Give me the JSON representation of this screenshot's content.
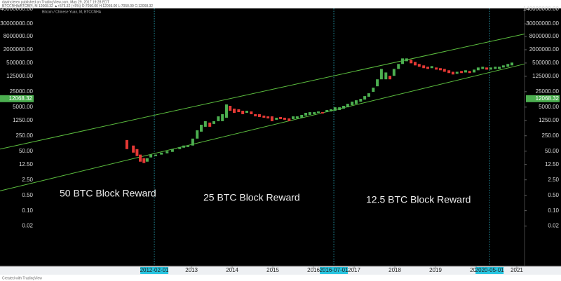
{
  "header": {
    "author_line": "davincierex published on TradingView.com, May 29, 2017 19:28 EDT",
    "quote_line": "BTCCNHA/BTCBPI, M 12068.32 ▲+575.32 (+5%) O:7050.00 H:12069.00 L:7050.00 C:12068.32"
  },
  "footer": "Created with TradingView",
  "chart_data": {
    "type": "candlestick",
    "title": "Bitcoin / Chinese Yuan, M, BTCCNHA",
    "log_scale": true,
    "up_color": "#4caf50",
    "down_color": "#e53935",
    "last_price": 12068.32,
    "last_price_color": "#4caf50",
    "xlim": [
      2008.29,
      2021.19
    ],
    "ylim": [
      0.0003,
      150000000
    ],
    "xticks": [
      2013,
      2014,
      2015,
      2016,
      2017,
      2018,
      2019,
      2020,
      2021
    ],
    "yticks": [
      {
        "value": 140000000,
        "label": "140000000.00"
      },
      {
        "value": 30000000,
        "label": "30000000.00"
      },
      {
        "value": 8000000,
        "label": "8000000.00"
      },
      {
        "value": 2000000,
        "label": "2000000.00"
      },
      {
        "value": 500000,
        "label": "500000.00"
      },
      {
        "value": 125000,
        "label": "125000.00"
      },
      {
        "value": 25000,
        "label": "25000.00"
      },
      {
        "value": 5000,
        "label": "5000.00"
      },
      {
        "value": 1250,
        "label": "1250.00"
      },
      {
        "value": 250,
        "label": "250.00"
      },
      {
        "value": 50,
        "label": "50.00"
      },
      {
        "value": 12.5,
        "label": "12.50"
      },
      {
        "value": 2.5,
        "label": "2.50"
      },
      {
        "value": 0.5,
        "label": "0.50"
      },
      {
        "value": 0.1,
        "label": "0.10"
      },
      {
        "value": 0.02,
        "label": "0.02"
      }
    ],
    "markers": [
      {
        "value": 2012.085,
        "label": "2012-02-01"
      },
      {
        "value": 2016.5,
        "label": "2016-07-01"
      },
      {
        "value": 2020.33,
        "label": "2020-05-01"
      }
    ],
    "channel_color": "#5bbd3e",
    "channel": [
      {
        "x": [
          2008.29,
          2021.19
        ],
        "values": [
          62,
          10400000
        ]
      },
      {
        "x": [
          2008.29,
          2021.19
        ],
        "values": [
          0.79,
          452000
        ]
      }
    ],
    "annotations": [
      "50 BTC Block Reward",
      "25 BTC Block Reward",
      "12.5 BTC Block Reward"
    ],
    "x": [
      2011.41,
      2011.57,
      2011.66,
      2011.74,
      2011.83,
      2011.91,
      2012.0,
      2012.12,
      2012.26,
      2012.4,
      2012.53,
      2012.71,
      2012.81,
      2012.91,
      2013.03,
      2013.14,
      2013.24,
      2013.34,
      2013.45,
      2013.55,
      2013.66,
      2013.76,
      2013.86,
      2013.95,
      2014.05,
      2014.16,
      2014.26,
      2014.36,
      2014.47,
      2014.57,
      2014.67,
      2014.78,
      2014.88,
      2014.98,
      2015.09,
      2015.19,
      2015.29,
      2015.4,
      2015.5,
      2015.6,
      2015.71,
      2015.81,
      2015.91,
      2016.02,
      2016.12,
      2016.22,
      2016.33,
      2016.43,
      2016.53,
      2016.64,
      2016.74,
      2016.84,
      2016.95,
      2017.05,
      2017.16,
      2017.26,
      2017.36,
      2017.47,
      2017.57,
      2017.67,
      2017.78,
      2017.88,
      2017.98,
      2018.09,
      2018.19,
      2018.29,
      2018.4,
      2018.5,
      2018.6,
      2018.71,
      2018.81,
      2018.91,
      2019.02,
      2019.12,
      2019.22,
      2019.33,
      2019.43,
      2019.53,
      2019.64,
      2019.74,
      2019.84,
      2019.95,
      2020.05,
      2020.16,
      2020.26,
      2020.36,
      2020.47,
      2020.57,
      2020.67,
      2020.78,
      2020.88
    ],
    "open": [
      160,
      90,
      62,
      35,
      24,
      16.7,
      26,
      30,
      35,
      40,
      46.5,
      62,
      72,
      77,
      90,
      186,
      385,
      640,
      990,
      860,
      1150,
      1150,
      1650,
      5700,
      4260,
      3970,
      3420,
      2750,
      3170,
      2380,
      2380,
      2060,
      1900,
      1900,
      1330,
      1780,
      1650,
      1530,
      1430,
      1530,
      1650,
      2060,
      2210,
      2380,
      2750,
      2950,
      2950,
      3170,
      3420,
      3680,
      4260,
      4900,
      6150,
      7070,
      8830,
      11000,
      14700,
      24500,
      43900,
      91000,
      91000,
      131000,
      131000,
      270000,
      452000,
      602000,
      700000,
      561000,
      452000,
      390000,
      338000,
      292000,
      313000,
      292000,
      270000,
      234000,
      200000,
      162000,
      218000,
      186000,
      218000,
      186000,
      234000,
      270000,
      313000,
      251000,
      270000,
      270000,
      313000,
      338000,
      390000
    ],
    "close": [
      62,
      43,
      30,
      16.7,
      14.5,
      24,
      35,
      35,
      43,
      50,
      62,
      77,
      90,
      90,
      186,
      445,
      790,
      1150,
      640,
      1150,
      1900,
      2380,
      6600,
      3420,
      2750,
      2950,
      2380,
      3420,
      2380,
      1900,
      1780,
      1650,
      1530,
      1150,
      1650,
      1430,
      1330,
      1150,
      1900,
      1900,
      2210,
      2750,
      2950,
      2950,
      3170,
      2560,
      3680,
      3970,
      4900,
      4900,
      5700,
      7070,
      8830,
      10200,
      11800,
      15800,
      21200,
      37900,
      91000,
      270000,
      186000,
      91000,
      270000,
      452000,
      809000,
      809000,
      485000,
      390000,
      338000,
      292000,
      270000,
      362000,
      251000,
      234000,
      200000,
      175000,
      151000,
      200000,
      175000,
      234000,
      175000,
      251000,
      313000,
      338000,
      251000,
      313000,
      338000,
      338000,
      390000,
      452000,
      523000
    ]
  }
}
